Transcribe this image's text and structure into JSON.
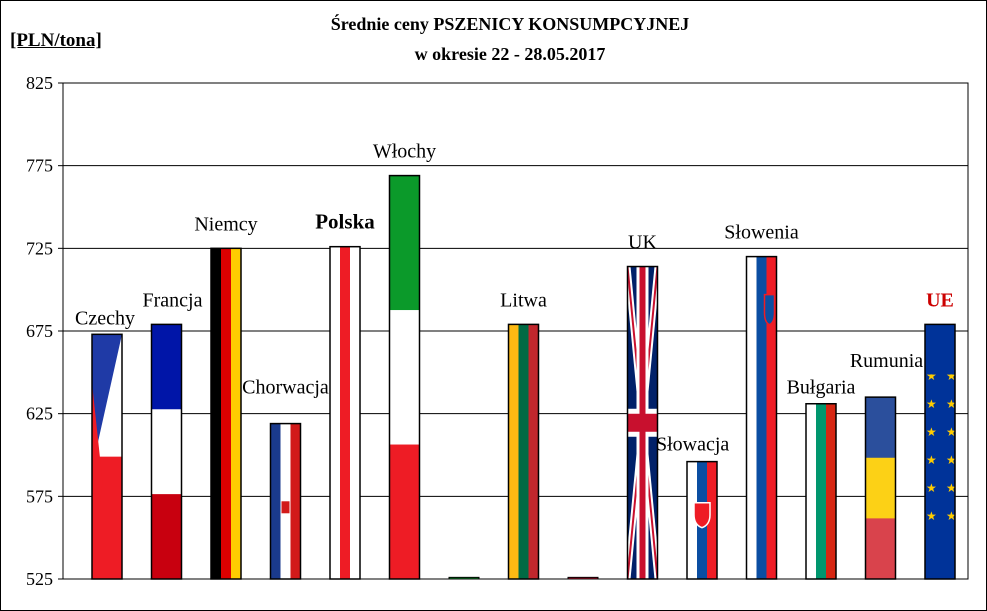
{
  "chart_data": {
    "type": "bar",
    "title": "Średnie ceny PSZENICY KONSUMPCYJNEJ",
    "subtitle": "w okresie  22 - 28.05.2017",
    "ylabel": "[PLN/tona]",
    "ylim": [
      525,
      825
    ],
    "yticks": [
      "825",
      "775",
      "725",
      "675",
      "625",
      "575",
      "525"
    ],
    "grid": true,
    "categories": [
      "Czechy",
      "Francja",
      "Niemcy",
      "Chorwacja",
      "Polska",
      "Włochy",
      "Litwa",
      "UK",
      "Słowacja",
      "Słowenia",
      "Bułgaria",
      "Rumunia",
      "UE"
    ],
    "label_slots": [
      0,
      1,
      2,
      3,
      4,
      5,
      7,
      9,
      10,
      11,
      12,
      13,
      14
    ],
    "values": [
      673,
      679,
      725,
      619,
      726,
      769,
      679,
      714,
      596,
      720,
      631,
      635,
      679
    ],
    "empty_slot_values": [
      526,
      526
    ],
    "empty_slots": [
      6,
      8
    ],
    "highlight": {
      "Polska": "bold",
      "UE": "#cc0000"
    }
  }
}
